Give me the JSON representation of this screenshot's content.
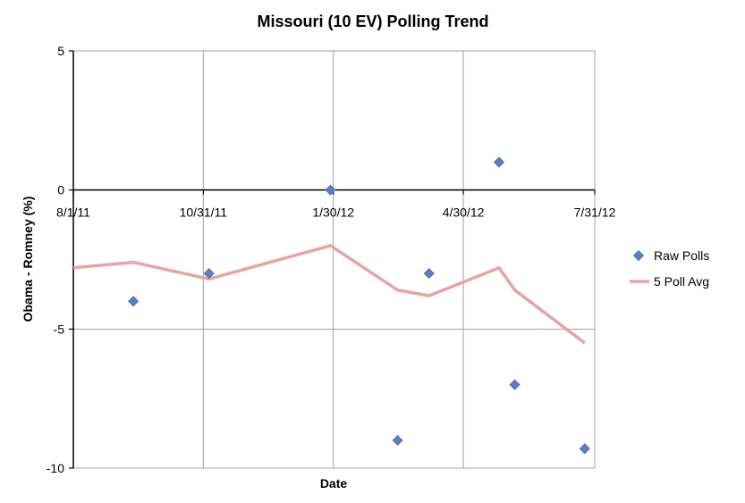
{
  "chart_data": {
    "type": "scatter",
    "title": "Missouri (10 EV) Polling Trend",
    "xlabel": "Date",
    "ylabel": "Obama - Romney (%)",
    "x_range": [
      "2011-08-01",
      "2012-07-31"
    ],
    "ylim": [
      -10,
      5
    ],
    "x_tick_labels": [
      "8/1/11",
      "10/31/11",
      "1/30/12",
      "4/30/12",
      "7/31/12"
    ],
    "x_ticks": [
      "2011-08-01",
      "2011-10-31",
      "2012-01-30",
      "2012-04-30",
      "2012-07-31"
    ],
    "y_ticks": [
      5,
      0,
      -5,
      -10
    ],
    "y_tick_labels": [
      "5",
      "0",
      "-5",
      "-10"
    ],
    "grid": true,
    "legend_position": "right",
    "series": [
      {
        "name": "Raw Polls",
        "kind": "scatter",
        "marker": "diamond",
        "color": "#5B7FC0",
        "points": [
          {
            "x": "2011-09-12",
            "y": -4
          },
          {
            "x": "2011-11-04",
            "y": -3
          },
          {
            "x": "2012-01-28",
            "y": 0
          },
          {
            "x": "2012-03-15",
            "y": -9
          },
          {
            "x": "2012-04-06",
            "y": -3
          },
          {
            "x": "2012-05-25",
            "y": 1
          },
          {
            "x": "2012-06-05",
            "y": -7
          },
          {
            "x": "2012-07-24",
            "y": -9.3
          }
        ]
      },
      {
        "name": "5 Poll Avg",
        "kind": "line",
        "color": "#E6A4A2",
        "points": [
          {
            "x": "2011-08-01",
            "y": -2.8
          },
          {
            "x": "2011-09-12",
            "y": -2.6
          },
          {
            "x": "2011-11-04",
            "y": -3.2
          },
          {
            "x": "2012-01-28",
            "y": -2
          },
          {
            "x": "2012-03-15",
            "y": -3.6
          },
          {
            "x": "2012-04-06",
            "y": -3.8
          },
          {
            "x": "2012-05-25",
            "y": -2.8
          },
          {
            "x": "2012-06-05",
            "y": -3.6
          },
          {
            "x": "2012-07-24",
            "y": -5.5
          }
        ]
      }
    ]
  }
}
